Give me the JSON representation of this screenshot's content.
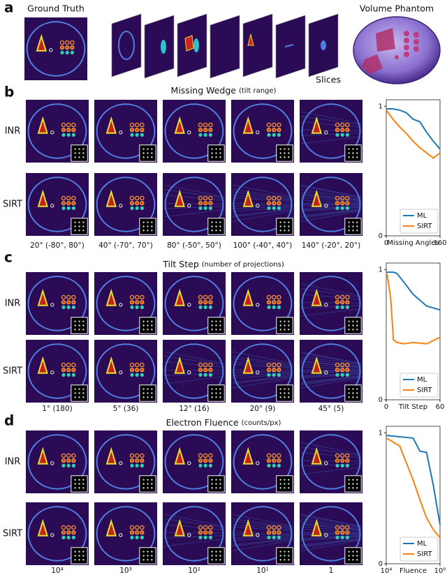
{
  "panel_a": {
    "label": "a",
    "ground_truth_title": "Ground Truth",
    "slices_label": "Slices",
    "phantom_title": "Volume Phantom"
  },
  "chart_data": [
    {
      "type": "line",
      "label": "b",
      "title": "Missing Wedge",
      "title_note": "(tilt range)",
      "rows": [
        "INR",
        "SIRT"
      ],
      "columns": [
        "20° (-80°, 80°)",
        "40° (-70°, 70°)",
        "80° (-50°, 50°)",
        "100° (-40°, 40°)",
        "140° (-20°, 20°)"
      ],
      "xlabel": "Missing Angles",
      "x": [
        0,
        20,
        40,
        60,
        80,
        100,
        120,
        140,
        160
      ],
      "series": [
        {
          "name": "ML",
          "color": "#1f77b4",
          "values": [
            0.98,
            0.98,
            0.97,
            0.95,
            0.9,
            0.88,
            0.8,
            0.73,
            0.67
          ]
        },
        {
          "name": "SIRT",
          "color": "#ff7f0e",
          "values": [
            0.97,
            0.9,
            0.84,
            0.79,
            0.73,
            0.68,
            0.64,
            0.6,
            0.64
          ]
        }
      ],
      "xlim": [
        0,
        160
      ],
      "xticks": [
        0,
        160
      ],
      "ylim": [
        0,
        1.05
      ],
      "yticks": [
        0,
        1
      ],
      "legend": "lower right"
    },
    {
      "type": "line",
      "label": "c",
      "title": "Tilt Step",
      "title_note": "(number of projections)",
      "rows": [
        "INR",
        "SIRT"
      ],
      "columns": [
        "1° (180)",
        "5° (36)",
        "12° (16)",
        "20° (9)",
        "45° (5)"
      ],
      "xlabel": "Tilt Step",
      "x": [
        0,
        1,
        5,
        8,
        12,
        20,
        30,
        45,
        60
      ],
      "series": [
        {
          "name": "ML",
          "color": "#1f77b4",
          "values": [
            0.98,
            0.98,
            0.98,
            0.98,
            0.97,
            0.9,
            0.81,
            0.72,
            0.69
          ]
        },
        {
          "name": "SIRT",
          "color": "#ff7f0e",
          "values": [
            0.97,
            0.96,
            0.78,
            0.46,
            0.44,
            0.43,
            0.44,
            0.43,
            0.48
          ]
        }
      ],
      "xlim": [
        0,
        60
      ],
      "xticks": [
        0,
        60
      ],
      "ylim": [
        0,
        1.05
      ],
      "yticks": [
        0,
        1
      ],
      "legend": "lower right"
    },
    {
      "type": "line",
      "label": "d",
      "title": "Electron Fluence",
      "title_note": "(counts/px)",
      "rows": [
        "INR",
        "SIRT"
      ],
      "columns": [
        "10⁴",
        "10³",
        "10²",
        "10¹",
        "1"
      ],
      "xlabel": "Fluence",
      "x": [
        10000,
        1000,
        100,
        31.6,
        10,
        3.16,
        1
      ],
      "series": [
        {
          "name": "ML",
          "color": "#1f77b4",
          "values": [
            0.98,
            0.97,
            0.96,
            0.86,
            0.85,
            0.6,
            0.3
          ]
        },
        {
          "name": "SIRT",
          "color": "#ff7f0e",
          "values": [
            0.96,
            0.9,
            0.64,
            0.49,
            0.35,
            0.26,
            0.2
          ]
        }
      ],
      "xscale": "log",
      "xlim": [
        10000,
        1
      ],
      "xticks": [
        {
          "value": 10000,
          "label": "10⁴"
        },
        {
          "value": 1,
          "label": "10⁰"
        }
      ],
      "ylim": [
        0,
        1.05
      ],
      "yticks": [
        0,
        1
      ],
      "legend": "lower right"
    }
  ]
}
